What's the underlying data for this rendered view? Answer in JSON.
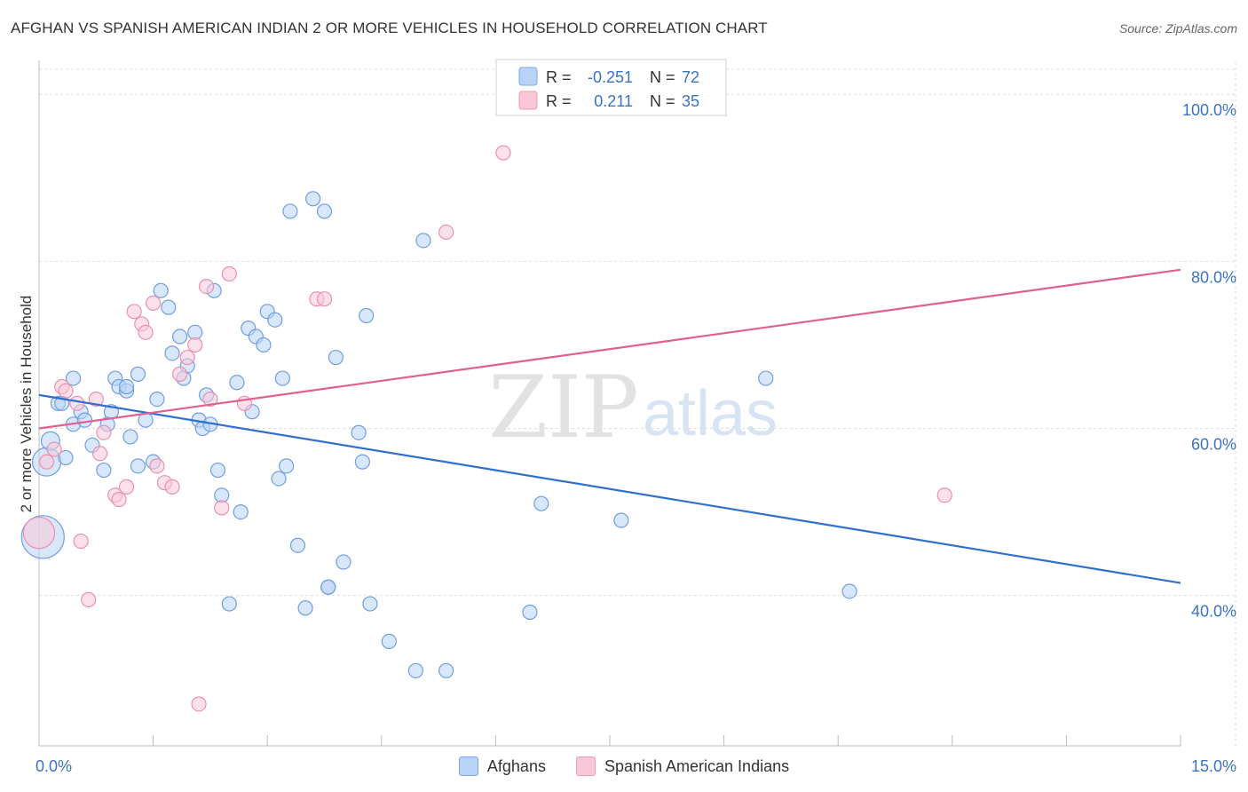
{
  "header": {
    "title": "AFGHAN VS SPANISH AMERICAN INDIAN 2 OR MORE VEHICLES IN HOUSEHOLD CORRELATION CHART",
    "source": "Source: ZipAtlas.com"
  },
  "watermark": {
    "zip": "ZIP",
    "atlas": "atlas"
  },
  "colors": {
    "blue_fill": "#b9d3f7",
    "blue_stroke": "#6f9fe0",
    "blue_line": "#2f6fcf",
    "pink_fill": "#f9c8d8",
    "pink_stroke": "#ec8fb0",
    "pink_line": "#e0608f",
    "axis_text": "#3b73c4",
    "grid": "#dddddd"
  },
  "chart_data": {
    "type": "scatter",
    "ylabel": "2 or more Vehicles in Household",
    "xlim": [
      0,
      15
    ],
    "ylim": [
      22,
      103
    ],
    "x_tick_labels": [
      {
        "value": 0,
        "label": "0.0%"
      },
      {
        "value": 15,
        "label": "15.0%"
      }
    ],
    "y_tick_labels": [
      {
        "value": 40,
        "label": "40.0%"
      },
      {
        "value": 60,
        "label": "60.0%"
      },
      {
        "value": 80,
        "label": "80.0%"
      },
      {
        "value": 100,
        "label": "100.0%"
      }
    ],
    "grid": true,
    "legend_top": [
      {
        "r_label": "R = ",
        "r_value": "-0.251",
        "n_label": "N = ",
        "n_value": "72"
      },
      {
        "r_label": "R = ",
        "r_value": "0.211",
        "n_label": "N = ",
        "n_value": "35"
      }
    ],
    "series": [
      {
        "name": "Afghans",
        "trend": {
          "x": [
            0,
            15
          ],
          "y": [
            64,
            41.5
          ]
        },
        "points": [
          [
            0.05,
            47.0,
            3
          ],
          [
            0.1,
            56.0,
            2
          ],
          [
            0.15,
            58.5,
            1.3
          ],
          [
            0.35,
            56.5,
            1
          ],
          [
            0.25,
            63.0,
            1
          ],
          [
            0.3,
            63.0,
            1
          ],
          [
            0.45,
            66.0,
            1
          ],
          [
            0.45,
            60.5,
            1
          ],
          [
            0.55,
            62.0,
            1
          ],
          [
            0.6,
            61.0,
            1
          ],
          [
            0.7,
            58.0,
            1
          ],
          [
            0.85,
            55.0,
            1
          ],
          [
            0.9,
            60.5,
            1
          ],
          [
            0.95,
            62.0,
            1
          ],
          [
            1.0,
            66.0,
            1
          ],
          [
            1.05,
            65.0,
            1
          ],
          [
            1.15,
            64.5,
            1
          ],
          [
            1.2,
            59.0,
            1
          ],
          [
            1.3,
            55.5,
            1
          ],
          [
            1.3,
            66.5,
            1
          ],
          [
            1.4,
            61.0,
            1
          ],
          [
            1.5,
            56.0,
            1
          ],
          [
            1.55,
            63.5,
            1
          ],
          [
            1.6,
            76.5,
            1
          ],
          [
            1.7,
            74.5,
            1
          ],
          [
            1.75,
            69.0,
            1
          ],
          [
            1.85,
            71.0,
            1
          ],
          [
            1.9,
            66.0,
            1
          ],
          [
            1.95,
            67.5,
            1
          ],
          [
            2.05,
            71.5,
            1
          ],
          [
            2.1,
            61.0,
            1
          ],
          [
            2.15,
            60.0,
            1
          ],
          [
            2.2,
            64.0,
            1
          ],
          [
            2.25,
            60.5,
            1
          ],
          [
            2.3,
            76.5,
            1
          ],
          [
            2.35,
            55.0,
            1
          ],
          [
            2.4,
            52.0,
            1
          ],
          [
            2.5,
            39.0,
            1
          ],
          [
            2.6,
            65.5,
            1
          ],
          [
            2.65,
            50.0,
            1
          ],
          [
            2.75,
            72.0,
            1
          ],
          [
            2.8,
            62.0,
            1
          ],
          [
            2.85,
            71.0,
            1
          ],
          [
            2.95,
            70.0,
            1
          ],
          [
            3.0,
            74.0,
            1
          ],
          [
            3.1,
            73.0,
            1
          ],
          [
            3.15,
            54.0,
            1
          ],
          [
            3.2,
            66.0,
            1
          ],
          [
            3.3,
            86.0,
            1
          ],
          [
            3.4,
            46.0,
            1
          ],
          [
            3.5,
            38.5,
            1
          ],
          [
            3.6,
            87.5,
            1
          ],
          [
            3.75,
            86.0,
            1
          ],
          [
            3.8,
            41.0,
            1
          ],
          [
            3.9,
            68.5,
            1
          ],
          [
            4.0,
            44.0,
            1
          ],
          [
            3.8,
            41.0,
            1
          ],
          [
            4.2,
            59.5,
            1
          ],
          [
            4.25,
            56.0,
            1
          ],
          [
            4.3,
            73.5,
            1
          ],
          [
            4.35,
            39.0,
            1
          ],
          [
            4.6,
            34.5,
            1
          ],
          [
            4.95,
            31.0,
            1
          ],
          [
            5.35,
            31.0,
            1
          ],
          [
            5.05,
            82.5,
            1
          ],
          [
            6.45,
            38.0,
            1
          ],
          [
            6.6,
            51.0,
            1
          ],
          [
            7.65,
            49.0,
            1
          ],
          [
            9.55,
            66.0,
            1
          ],
          [
            10.65,
            40.5,
            1
          ],
          [
            3.25,
            55.5,
            1
          ],
          [
            1.15,
            65.0,
            1
          ]
        ]
      },
      {
        "name": "Spanish American Indians",
        "trend": {
          "x": [
            0,
            15
          ],
          "y": [
            60,
            79
          ]
        },
        "points": [
          [
            0.1,
            56.0,
            1
          ],
          [
            0.2,
            57.5,
            1
          ],
          [
            0.3,
            65.0,
            1
          ],
          [
            0.35,
            64.5,
            1
          ],
          [
            0.5,
            63.0,
            1
          ],
          [
            0.55,
            46.5,
            1
          ],
          [
            0.65,
            39.5,
            1
          ],
          [
            0.75,
            63.5,
            1
          ],
          [
            0.8,
            57.0,
            1
          ],
          [
            0.85,
            59.5,
            1
          ],
          [
            1.0,
            52.0,
            1
          ],
          [
            1.05,
            51.5,
            1
          ],
          [
            1.15,
            53.0,
            1
          ],
          [
            1.25,
            74.0,
            1
          ],
          [
            1.35,
            72.5,
            1
          ],
          [
            1.4,
            71.5,
            1
          ],
          [
            1.5,
            75.0,
            1
          ],
          [
            1.55,
            55.5,
            1
          ],
          [
            1.65,
            53.5,
            1
          ],
          [
            1.75,
            53.0,
            1
          ],
          [
            1.85,
            66.5,
            1
          ],
          [
            1.95,
            68.5,
            1
          ],
          [
            2.05,
            70.0,
            1
          ],
          [
            2.1,
            27.0,
            1
          ],
          [
            2.2,
            77.0,
            1
          ],
          [
            2.25,
            63.5,
            1
          ],
          [
            2.4,
            50.5,
            1
          ],
          [
            2.5,
            78.5,
            1
          ],
          [
            2.7,
            63.0,
            1
          ],
          [
            3.65,
            75.5,
            1
          ],
          [
            3.75,
            75.5,
            1
          ],
          [
            5.35,
            83.5,
            1
          ],
          [
            6.1,
            93.0,
            1
          ],
          [
            11.9,
            52.0,
            1
          ],
          [
            0.0,
            47.5,
            2.2
          ]
        ]
      }
    ]
  }
}
